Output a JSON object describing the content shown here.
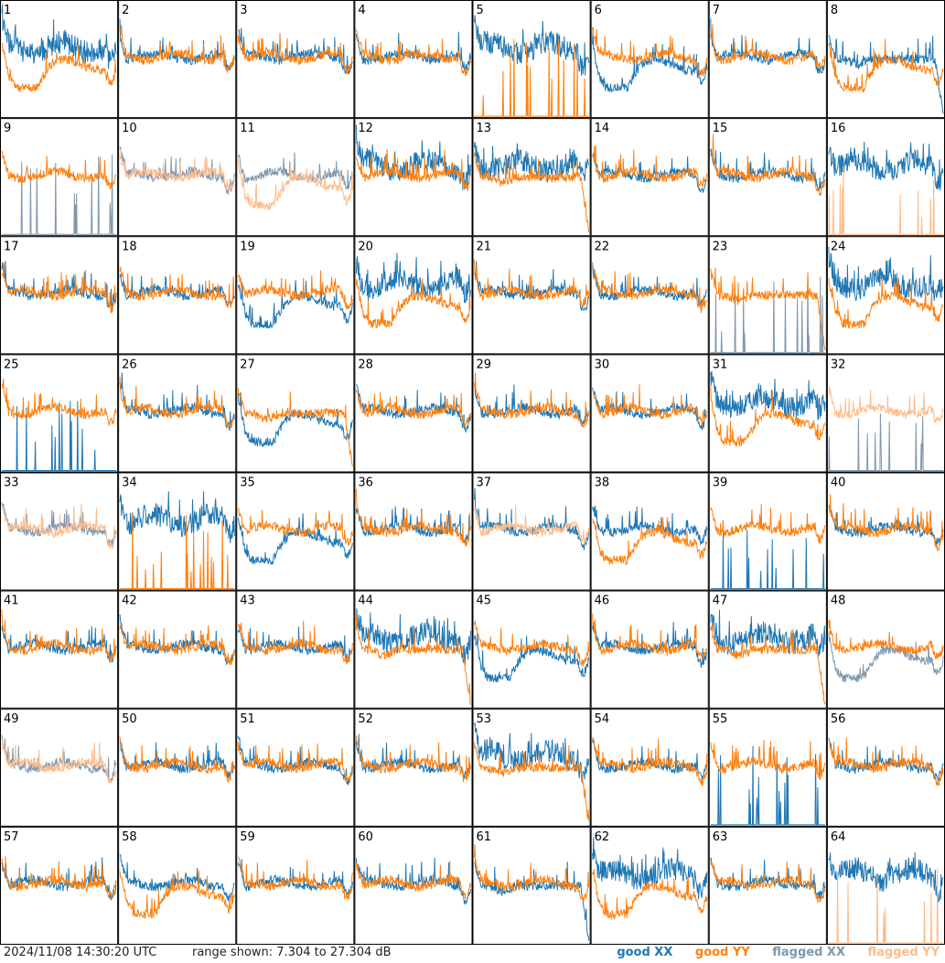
{
  "footer": {
    "timestamp": "2024/11/08 14:30:20 UTC",
    "range_text": "range shown: 7.304 to 27.304 dB"
  },
  "legend": [
    {
      "label": "good XX",
      "color": "#1f77b4"
    },
    {
      "label": "good YY",
      "color": "#ff7f0e"
    },
    {
      "label": "flagged XX",
      "color": "#7f97ad"
    },
    {
      "label": "flagged YY",
      "color": "#ffbb88"
    }
  ],
  "chart_data": {
    "type": "line",
    "title": "",
    "ylim": [
      7.304,
      27.304
    ],
    "grid": false,
    "legend_placement": "bottom-right",
    "panel_count": 64,
    "panel_labels": [
      "1",
      "2",
      "3",
      "4",
      "5",
      "6",
      "7",
      "8",
      "9",
      "10",
      "11",
      "12",
      "13",
      "14",
      "15",
      "16",
      "17",
      "18",
      "19",
      "20",
      "21",
      "22",
      "23",
      "24",
      "25",
      "26",
      "27",
      "28",
      "29",
      "30",
      "31",
      "32",
      "33",
      "34",
      "35",
      "36",
      "37",
      "38",
      "39",
      "40",
      "41",
      "42",
      "43",
      "44",
      "45",
      "46",
      "47",
      "48",
      "49",
      "50",
      "51",
      "52",
      "53",
      "54",
      "55",
      "56",
      "57",
      "58",
      "59",
      "60",
      "61",
      "62",
      "63",
      "64"
    ],
    "panel_profiles": {
      "1": {
        "xx": "band",
        "yy": "dip"
      },
      "2": {
        "xx": "normal",
        "yy": "normal"
      },
      "3": {
        "xx": "normal",
        "yy": "normal"
      },
      "4": {
        "xx": "normal",
        "yy": "normal"
      },
      "5": {
        "xx": "band",
        "yy": "spikes"
      },
      "6": {
        "xx": "dip",
        "yy": "normal"
      },
      "7": {
        "xx": "normal",
        "yy": "normal"
      },
      "8": {
        "xx": "flat",
        "yy": "dip"
      },
      "9": {
        "xx": "flagged_spikes",
        "yy": "normal"
      },
      "10": {
        "xx": "flagged_normal",
        "yy": "flagged_normal"
      },
      "11": {
        "xx": "flagged_normal",
        "yy": "flagged_dip"
      },
      "12": {
        "xx": "band",
        "yy": "normal"
      },
      "13": {
        "xx": "band",
        "yy": "flat"
      },
      "14": {
        "xx": "normal",
        "yy": "normal"
      },
      "15": {
        "xx": "normal",
        "yy": "normal"
      },
      "16": {
        "xx": "band",
        "yy": "flagged_spikes"
      },
      "17": {
        "xx": "normal",
        "yy": "normal"
      },
      "18": {
        "xx": "normal",
        "yy": "normal"
      },
      "19": {
        "xx": "dip",
        "yy": "normal"
      },
      "20": {
        "xx": "band",
        "yy": "dip"
      },
      "21": {
        "xx": "normal",
        "yy": "normal"
      },
      "22": {
        "xx": "normal",
        "yy": "normal"
      },
      "23": {
        "xx": "flagged_spikes",
        "yy": "flat"
      },
      "24": {
        "xx": "band",
        "yy": "dip"
      },
      "25": {
        "xx": "spikes",
        "yy": "normal"
      },
      "26": {
        "xx": "normal",
        "yy": "normal"
      },
      "27": {
        "xx": "dip",
        "yy": "flat"
      },
      "28": {
        "xx": "normal",
        "yy": "normal"
      },
      "29": {
        "xx": "normal",
        "yy": "normal"
      },
      "30": {
        "xx": "normal",
        "yy": "normal"
      },
      "31": {
        "xx": "band",
        "yy": "dip"
      },
      "32": {
        "xx": "flagged_spikes",
        "yy": "flagged_normal"
      },
      "33": {
        "xx": "flagged_normal",
        "yy": "flagged_normal"
      },
      "34": {
        "xx": "band",
        "yy": "spikes"
      },
      "35": {
        "xx": "dip",
        "yy": "normal"
      },
      "36": {
        "xx": "normal",
        "yy": "normal"
      },
      "37": {
        "xx": "normal",
        "yy": "flagged_normal"
      },
      "38": {
        "xx": "normal",
        "yy": "dip"
      },
      "39": {
        "xx": "spikes",
        "yy": "normal"
      },
      "40": {
        "xx": "normal",
        "yy": "normal"
      },
      "41": {
        "xx": "normal",
        "yy": "normal"
      },
      "42": {
        "xx": "normal",
        "yy": "normal"
      },
      "43": {
        "xx": "normal",
        "yy": "normal"
      },
      "44": {
        "xx": "band",
        "yy": "flat"
      },
      "45": {
        "xx": "dip",
        "yy": "normal"
      },
      "46": {
        "xx": "normal",
        "yy": "normal"
      },
      "47": {
        "xx": "band",
        "yy": "flat"
      },
      "48": {
        "xx": "flagged_dip",
        "yy": "normal"
      },
      "49": {
        "xx": "flagged_normal",
        "yy": "flagged_normal"
      },
      "50": {
        "xx": "normal",
        "yy": "normal"
      },
      "51": {
        "xx": "normal",
        "yy": "normal"
      },
      "52": {
        "xx": "normal",
        "yy": "normal"
      },
      "53": {
        "xx": "band",
        "yy": "flat"
      },
      "54": {
        "xx": "normal",
        "yy": "normal"
      },
      "55": {
        "xx": "spikes",
        "yy": "normal"
      },
      "56": {
        "xx": "normal",
        "yy": "normal"
      },
      "57": {
        "xx": "normal",
        "yy": "normal"
      },
      "58": {
        "xx": "normal",
        "yy": "dip"
      },
      "59": {
        "xx": "normal",
        "yy": "normal"
      },
      "60": {
        "xx": "normal",
        "yy": "normal"
      },
      "61": {
        "xx": "flat",
        "yy": "normal"
      },
      "62": {
        "xx": "band",
        "yy": "dip"
      },
      "63": {
        "xx": "normal",
        "yy": "normal"
      },
      "64": {
        "xx": "band",
        "yy": "flagged_spikes"
      }
    },
    "series_styles": {
      "xx": {
        "good": "#1f77b4",
        "flagged": "#7f97ad"
      },
      "yy": {
        "good": "#ff7f0e",
        "flagged": "#ffbb88"
      }
    }
  }
}
